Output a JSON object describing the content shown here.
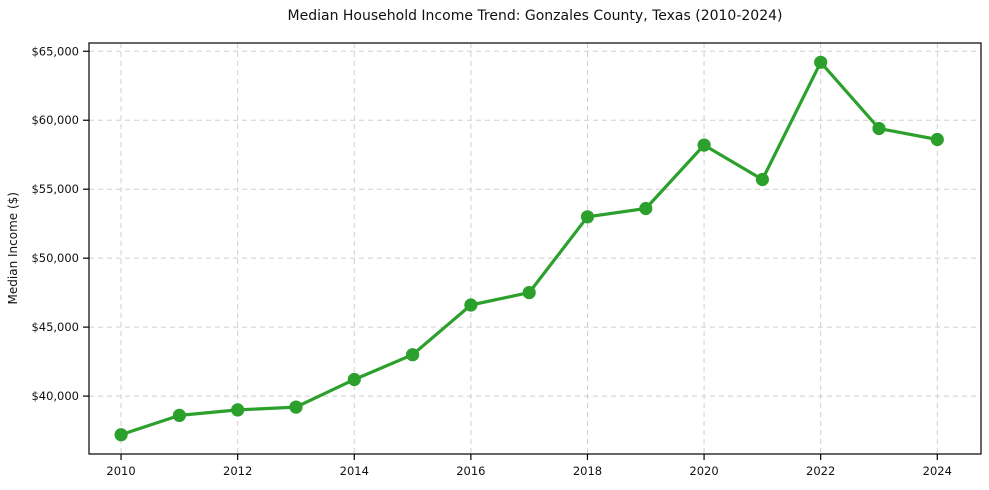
{
  "chart_data": {
    "type": "line",
    "title": "Median Household Income Trend: Gonzales County, Texas (2010-2024)",
    "xlabel": "",
    "ylabel": "Median Income ($)",
    "x": [
      2010,
      2011,
      2012,
      2013,
      2014,
      2015,
      2016,
      2017,
      2018,
      2019,
      2020,
      2021,
      2022,
      2023,
      2024
    ],
    "series": [
      {
        "name": "Median Household Income",
        "values": [
          37200,
          38600,
          39000,
          39200,
          41200,
          43000,
          46600,
          47500,
          53000,
          53600,
          58200,
          55700,
          64200,
          59400,
          58600
        ]
      }
    ],
    "xlim": [
      2009.45,
      2024.75
    ],
    "ylim": [
      35800,
      65600
    ],
    "x_ticks": {
      "values": [
        2010,
        2012,
        2014,
        2016,
        2018,
        2020,
        2022,
        2024
      ],
      "labels": [
        "2010",
        "2012",
        "2014",
        "2016",
        "2018",
        "2020",
        "2022",
        "2024"
      ]
    },
    "y_ticks": {
      "values": [
        40000,
        45000,
        50000,
        55000,
        60000,
        65000
      ],
      "labels": [
        "$40,000",
        "$45,000",
        "$50,000",
        "$55,000",
        "$60,000",
        "$65,000"
      ]
    },
    "grid": true,
    "legend": "none",
    "colors": {
      "line": "#2ca02c",
      "marker": "#2ca02c",
      "grid": "#cfcfcf",
      "frame": "#000000",
      "text": "#111111"
    },
    "marker_radius": 6.6,
    "line_width": 3.2
  }
}
